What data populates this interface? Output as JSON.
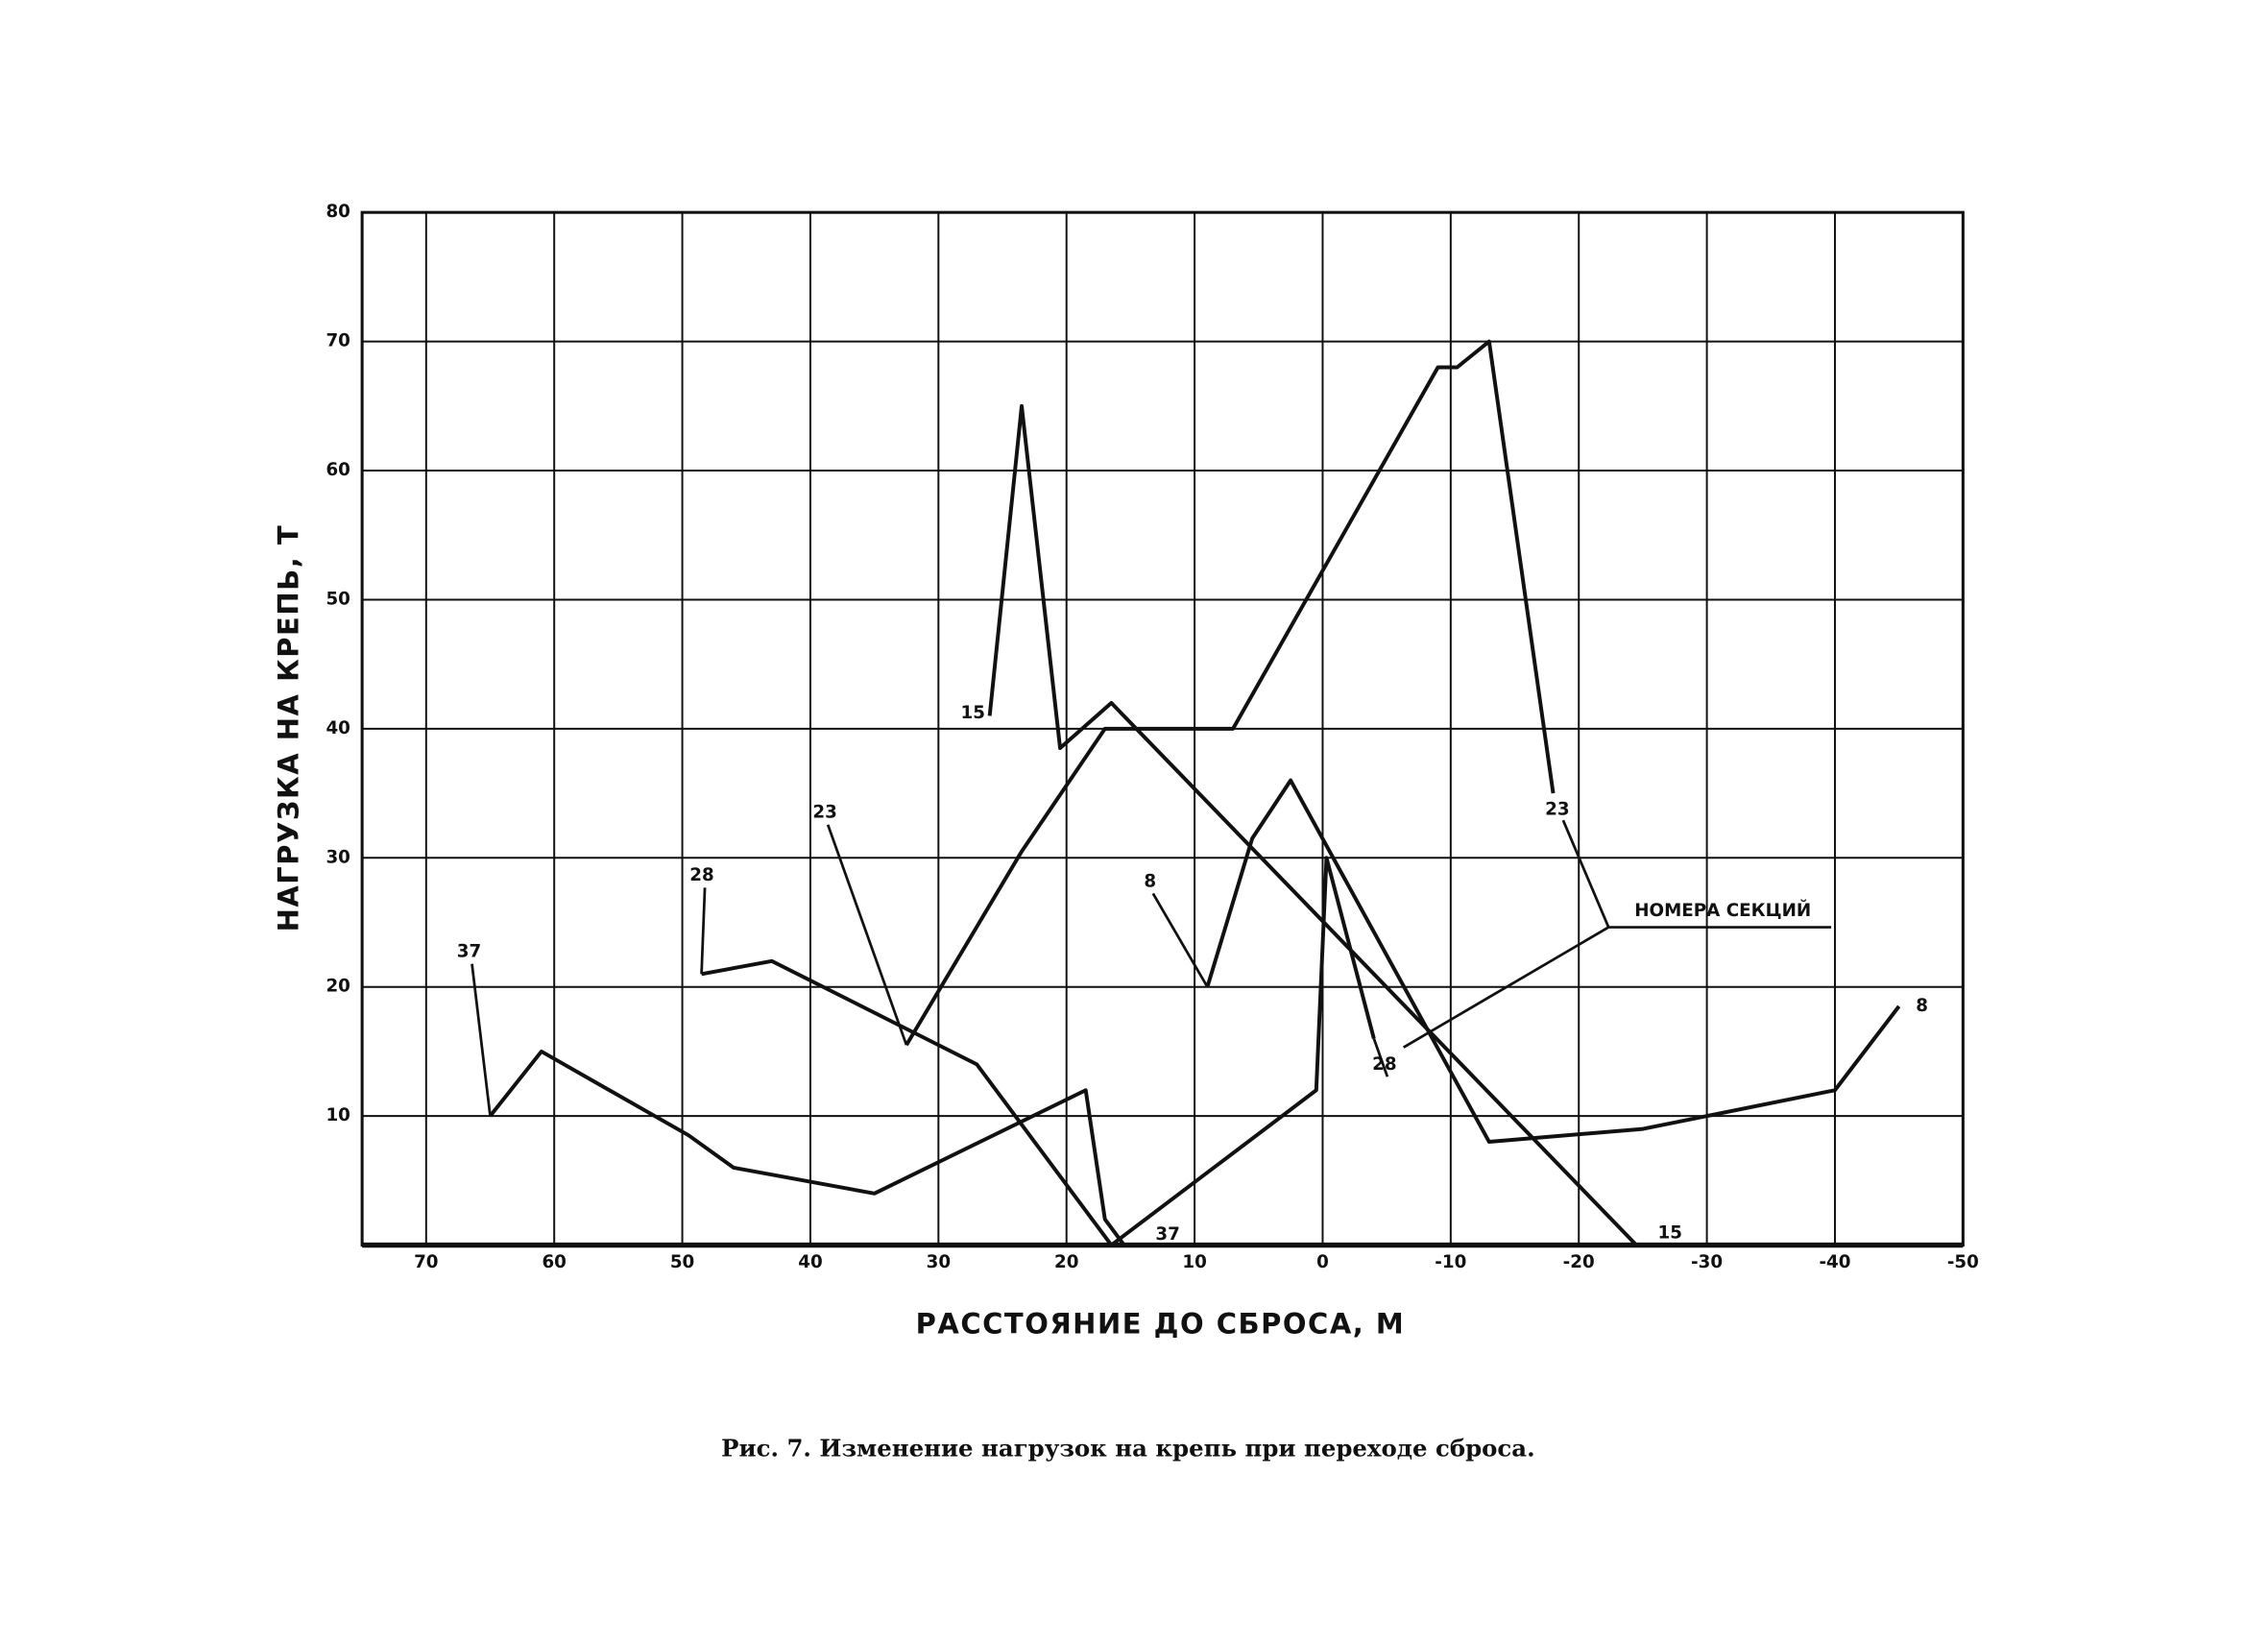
{
  "chart_data": {
    "type": "line",
    "ylabel": "НАГРУЗКА НА КРЕПЬ, Т",
    "xlabel": "РАССТОЯНИЕ ДО СБРОСА, М",
    "caption": "Рис. 7. Изменение нагрузок на крепь при переходе сброса.",
    "annotation": "НОМЕРА СЕКЦИЙ",
    "xlim": [
      75,
      -50
    ],
    "xticks": [
      70,
      60,
      50,
      40,
      30,
      20,
      10,
      0,
      -10,
      -20,
      -30,
      -40,
      -50
    ],
    "ylim": [
      0,
      80
    ],
    "yticks": [
      10,
      20,
      30,
      40,
      50,
      60,
      70,
      80
    ],
    "grid": true,
    "color": "#111111",
    "series": [
      {
        "name": "37",
        "x": [
          65,
          61,
          49.5,
          46,
          35,
          18.5,
          17,
          15.5
        ],
        "values": [
          10,
          15,
          8.5,
          6,
          4,
          12,
          2,
          0
        ]
      },
      {
        "name": "28",
        "x": [
          48.5,
          43,
          27,
          16.5,
          0.5,
          -0.3,
          -4
        ],
        "values": [
          21,
          22,
          14,
          0,
          12,
          30,
          16
        ]
      },
      {
        "name": "23",
        "x": [
          32.5,
          23.5,
          17,
          7,
          -9,
          -10.5,
          -13,
          -18
        ],
        "values": [
          15.5,
          30.5,
          40,
          40,
          68,
          68,
          70,
          35
        ]
      },
      {
        "name": "15",
        "x": [
          26,
          23.5,
          20.5,
          16.5,
          -24.5
        ],
        "values": [
          41,
          65,
          38.5,
          42,
          0
        ]
      },
      {
        "name": "8",
        "x": [
          9,
          5.5,
          2.5,
          -13,
          -25,
          -40,
          -45
        ],
        "values": [
          20,
          31.5,
          36,
          8,
          9,
          12,
          18.5
        ]
      }
    ]
  }
}
